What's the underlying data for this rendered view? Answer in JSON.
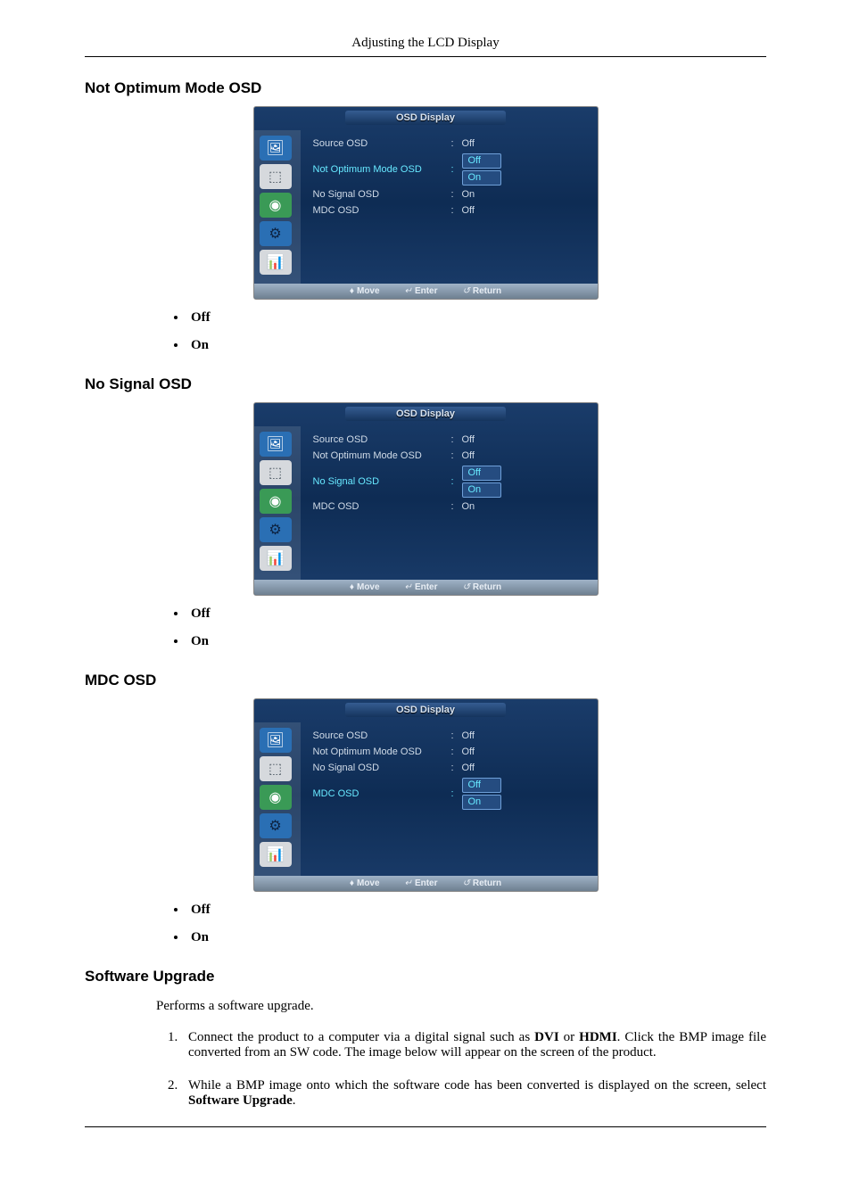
{
  "header": {
    "title": "Adjusting the LCD Display"
  },
  "osd_common": {
    "title_label": "OSD Display",
    "footer_move": "Move",
    "footer_enter": "Enter",
    "footer_return": "Return",
    "footer_move_icon": "♦",
    "footer_enter_icon": "↵",
    "footer_return_icon": "↺",
    "icon_colors": {
      "picture_bg": "#2a6fb4",
      "picture_fg": "#ffffff",
      "slider_bg": "#d6d9dd",
      "slider_fg": "#4a5660",
      "clock_bg": "#3a9a56",
      "clock_fg": "#ffffff",
      "gear_bg": "#2a6fb4",
      "gear_fg": "#0d2342",
      "chart_bg": "#d6d9dd",
      "chart_fg": "#5b7aa6"
    }
  },
  "section1": {
    "title": "Not Optimum Mode OSD",
    "rows": [
      {
        "label": "Source OSD",
        "val": "Off",
        "hl": false,
        "boxed": false
      },
      {
        "label": "Not Optimum Mode OSD",
        "val": "Off",
        "hl": true,
        "boxed": true,
        "stack": [
          "Off",
          "On"
        ]
      },
      {
        "label": "No Signal OSD",
        "val": "On",
        "hl": false,
        "boxed": false
      },
      {
        "label": "MDC OSD",
        "val": "Off",
        "hl": false,
        "boxed": false
      }
    ],
    "bullets": [
      "Off",
      "On"
    ]
  },
  "section2": {
    "title": "No Signal OSD",
    "rows": [
      {
        "label": "Source OSD",
        "val": "Off",
        "hl": false,
        "boxed": false
      },
      {
        "label": "Not Optimum Mode OSD",
        "val": "Off",
        "hl": false,
        "boxed": false
      },
      {
        "label": "No Signal OSD",
        "val": "Off",
        "hl": true,
        "boxed": true,
        "stack": [
          "Off",
          "On"
        ]
      },
      {
        "label": "MDC OSD",
        "val": "On",
        "hl": false,
        "boxed": false
      }
    ],
    "bullets": [
      "Off",
      "On"
    ]
  },
  "section3": {
    "title": "MDC OSD",
    "rows": [
      {
        "label": "Source OSD",
        "val": "Off",
        "hl": false,
        "boxed": false
      },
      {
        "label": "Not Optimum Mode OSD",
        "val": "Off",
        "hl": false,
        "boxed": false
      },
      {
        "label": "No Signal OSD",
        "val": "Off",
        "hl": false,
        "boxed": false
      },
      {
        "label": "MDC OSD",
        "val": "Off",
        "hl": true,
        "boxed": true,
        "stack": [
          "Off",
          "On"
        ]
      }
    ],
    "bullets": [
      "Off",
      "On"
    ]
  },
  "section4": {
    "title": "Software Upgrade",
    "intro": "Performs a software upgrade.",
    "steps": {
      "s1_a": "Connect the product to a computer via a digital signal such as ",
      "s1_b": "DVI",
      "s1_c": " or ",
      "s1_d": "HDMI",
      "s1_e": ". Click the BMP image file converted from an SW code. The image below will appear on the screen of the product.",
      "s2_a": "While a BMP image onto which the software code has been converted is displayed on the screen, select ",
      "s2_b": "Software Upgrade",
      "s2_c": "."
    }
  }
}
